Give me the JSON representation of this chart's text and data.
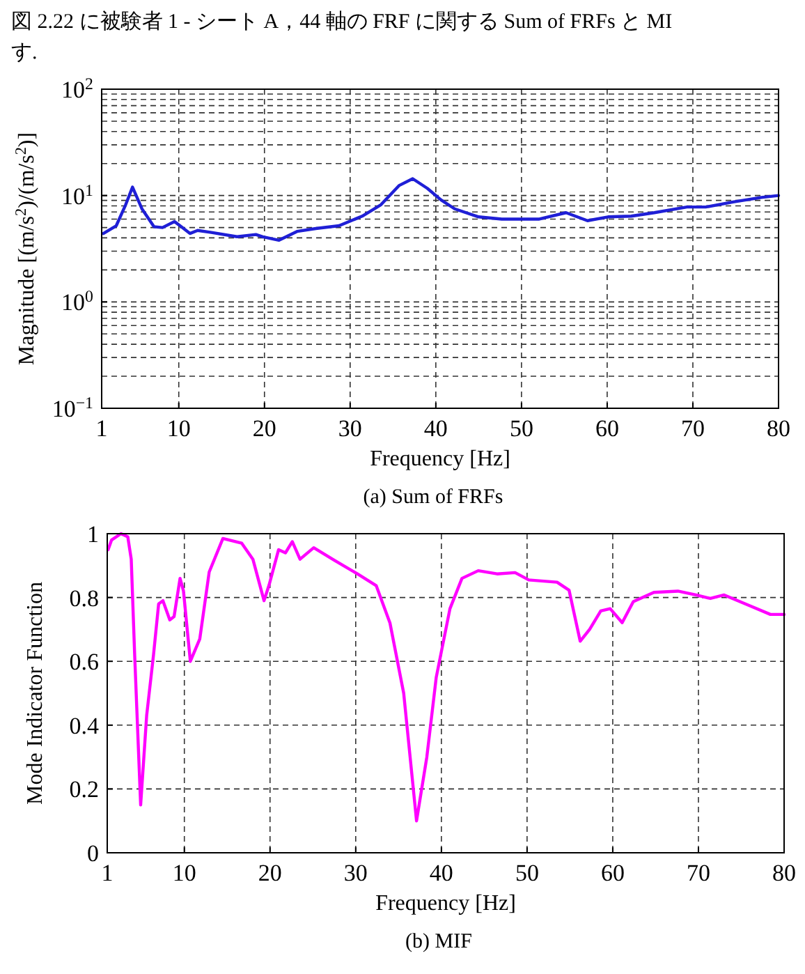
{
  "chart_data": [
    {
      "type": "line",
      "xlabel": "Frequency [Hz]",
      "ylabel": "Magnitude [(m/s$^{2}$)/(m/s$^{2}$)]",
      "log": "y",
      "grid": true,
      "xlim": [
        1,
        80
      ],
      "xticks": [
        1,
        10,
        20,
        30,
        40,
        50,
        60,
        70,
        80
      ],
      "ylim": [
        0.1,
        100
      ],
      "yticks": [
        {
          "value": 0.1,
          "label": "10$^{−1}$"
        },
        {
          "value": 1,
          "label": "10$^{0}$"
        },
        {
          "value": 10,
          "label": "10$^{1}$"
        },
        {
          "value": 100,
          "label": "10$^{2}$"
        }
      ],
      "annotations": [
        "図 2.22 に被験者 1 - シート A，44 軸の FRF に関する Sum of FRFs と MI",
        "す.",
        "(a) Sum of FRFs"
      ],
      "series": [
        {
          "color": "#1f1fd6",
          "x": [
            1.2,
            2.7,
            3.8,
            4.6,
            5.7,
            7.1,
            8.1,
            9.5,
            11.3,
            12.2,
            13.8,
            16.8,
            19.0,
            19.8,
            21.7,
            23.8,
            26,
            28.7,
            31.4,
            33.6,
            35.7,
            37.3,
            39,
            40.6,
            42.2,
            45,
            47.7,
            52,
            55.2,
            57.7,
            60.1,
            62.8,
            65.5,
            69.3,
            71.5,
            74.7,
            78,
            80
          ],
          "values": [
            4.4,
            5.2,
            8.2,
            12,
            7.5,
            5.1,
            5.0,
            5.7,
            4.4,
            4.7,
            4.5,
            4.1,
            4.3,
            4.1,
            3.8,
            4.6,
            4.9,
            5.2,
            6.4,
            8.2,
            12.4,
            14.4,
            11.7,
            9.1,
            7.5,
            6.3,
            6.0,
            6.0,
            6.9,
            5.8,
            6.3,
            6.4,
            6.9,
            7.8,
            7.8,
            8.7,
            9.6,
            10.0
          ]
        }
      ]
    },
    {
      "type": "line",
      "xlabel": "Frequency [Hz]",
      "ylabel": "Mode Indicator Function",
      "grid": true,
      "xlim": [
        1,
        80
      ],
      "xticks": [
        1,
        10,
        20,
        30,
        40,
        50,
        60,
        70,
        80
      ],
      "ylim": [
        0,
        1
      ],
      "yticks": [
        0,
        0.2,
        0.4,
        0.6,
        0.8,
        1
      ],
      "annotations": [
        "(b) MIF"
      ],
      "series": [
        {
          "color": "#ff00ff",
          "x": [
            1.1,
            1.5,
            2.6,
            3.4,
            3.8,
            4.2,
            4.9,
            5.6,
            6.4,
            7.0,
            7.5,
            8.3,
            8.8,
            9.5,
            9.9,
            10.7,
            11.8,
            12.9,
            14.5,
            16.7,
            18.0,
            19.3,
            19.9,
            21.0,
            21.8,
            22.6,
            23.5,
            25.1,
            27.5,
            30.2,
            32.4,
            34.0,
            35.6,
            37.1,
            38.3,
            39.4,
            41.0,
            42.4,
            44.3,
            46.5,
            48.6,
            50.2,
            53.5,
            54.9,
            56.2,
            57.3,
            58.6,
            59.7,
            61.1,
            62.4,
            64.8,
            67.6,
            69.7,
            71.4,
            73.0,
            76.2,
            78.4,
            80
          ],
          "values": [
            0.95,
            0.98,
            1.0,
            0.99,
            0.92,
            0.62,
            0.15,
            0.43,
            0.62,
            0.78,
            0.79,
            0.73,
            0.74,
            0.86,
            0.82,
            0.6,
            0.67,
            0.88,
            0.985,
            0.97,
            0.92,
            0.79,
            0.84,
            0.95,
            0.94,
            0.975,
            0.92,
            0.956,
            0.917,
            0.874,
            0.837,
            0.72,
            0.5,
            0.1,
            0.3,
            0.55,
            0.765,
            0.86,
            0.884,
            0.874,
            0.878,
            0.855,
            0.848,
            0.823,
            0.663,
            0.7,
            0.758,
            0.765,
            0.721,
            0.787,
            0.816,
            0.82,
            0.808,
            0.797,
            0.808,
            0.772,
            0.747,
            0.747
          ]
        }
      ]
    }
  ]
}
